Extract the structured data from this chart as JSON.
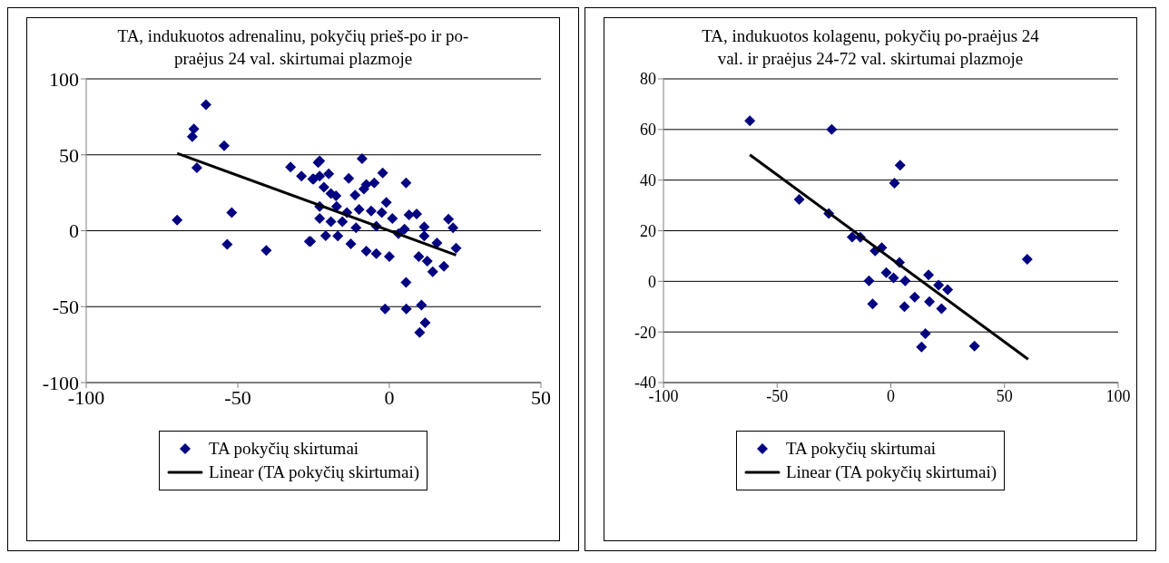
{
  "chart_data": [
    {
      "type": "scatter",
      "title": "TA, indukuotos adrenalinu, pokyčių prieš-po ir po-praėjus 24 val. skirtumai plazmoje",
      "xlim": [
        -100,
        50
      ],
      "xticks": [
        -100,
        -50,
        0,
        50
      ],
      "ylim": [
        -100,
        100
      ],
      "yticks": [
        -100,
        -50,
        0,
        50,
        100
      ],
      "grid": "y",
      "legend": "bottom",
      "series": [
        {
          "name": "TA pokyčių skirtumai",
          "color": "#000080",
          "marker": "diamond",
          "x": [
            -60.5,
            -64.5,
            -65,
            -54.5,
            -63.5,
            -70,
            -52,
            -53.5,
            -40.6,
            -32.6,
            -29,
            -25,
            -23.5,
            -26.4,
            -23,
            -25.3,
            -23,
            -20,
            -13.4,
            -9,
            -2.2,
            -5,
            -7.6,
            -8.4,
            -11.3,
            -21.6,
            -19.3,
            -17.6,
            5.5,
            -1,
            -23,
            -17.4,
            -14,
            -10,
            -6,
            -2.5,
            1,
            -23,
            6.5,
            9,
            11.5,
            19.5,
            21,
            -26,
            -21,
            -17,
            -12.7,
            11.5,
            15.7,
            22,
            5,
            3,
            -11,
            -4.3,
            -15.5,
            -19.3,
            18,
            14.3,
            5.5,
            -1.4,
            5.6,
            10.6,
            11.8,
            10,
            -7.6,
            -4.3,
            0,
            9.7,
            12.5
          ],
          "values": [
            83,
            67,
            62,
            56,
            41.5,
            7,
            12,
            -9,
            -13,
            42,
            36,
            34,
            45,
            -7,
            46,
            34,
            36,
            37.5,
            34.5,
            47.5,
            38,
            31.5,
            30.5,
            27.5,
            23.5,
            28.6,
            24.5,
            23,
            31.5,
            18.7,
            16,
            16,
            12,
            14,
            13,
            12,
            8,
            8,
            10.5,
            11,
            2.5,
            7.6,
            2,
            -7,
            -3.3,
            -3.5,
            -8.6,
            -3.5,
            -8,
            -11.5,
            1,
            -2,
            2,
            3,
            6,
            6,
            -23.4,
            -27,
            -34,
            -51.5,
            -51.5,
            -49,
            -60.6,
            -67,
            -13.5,
            -15,
            -17,
            -17,
            -20
          ]
        },
        {
          "name": "Linear (TA pokyčių skirtumai)",
          "type": "line",
          "color": "#000000",
          "marker": "none",
          "x": [
            -70,
            22
          ],
          "values": [
            51,
            -16
          ]
        }
      ]
    },
    {
      "type": "scatter",
      "title": "TA, indukuotos kolagenu, pokyčių po-praėjus 24 val. ir praėjus 24-72 val. skirtumai plazmoje",
      "xlim": [
        -100,
        100
      ],
      "xticks": [
        -100,
        -50,
        0,
        50,
        100
      ],
      "ylim": [
        -40,
        80
      ],
      "yticks": [
        -40,
        -20,
        0,
        20,
        40,
        60,
        80
      ],
      "grid": "y",
      "legend": "bottom",
      "series": [
        {
          "name": "TA pokyčių skirtumai",
          "color": "#000080",
          "marker": "diamond",
          "x": [
            -62,
            -26,
            -40.3,
            -27.3,
            -17,
            -13.4,
            -6.9,
            -4,
            1.6,
            4.1,
            3.8,
            60,
            16.6,
            -2,
            1.2,
            6.3,
            -9.6,
            21,
            25,
            10.5,
            17,
            6,
            -8,
            22.3,
            15.2,
            13.5,
            36.8
          ],
          "values": [
            63.4,
            60,
            32.4,
            26.8,
            17.5,
            17.4,
            12,
            13.3,
            38.8,
            45.9,
            7.5,
            8.7,
            2.5,
            3.4,
            1.4,
            0.2,
            0.2,
            -1.5,
            -3.3,
            -6.2,
            -8,
            -10,
            -8.9,
            -10.8,
            -20.7,
            -25.9,
            -25.6
          ]
        },
        {
          "name": "Linear (TA pokyčių skirtumai)",
          "type": "line",
          "color": "#000000",
          "marker": "none",
          "x": [
            -62,
            60.4
          ],
          "values": [
            50,
            -30.8
          ]
        }
      ]
    }
  ]
}
